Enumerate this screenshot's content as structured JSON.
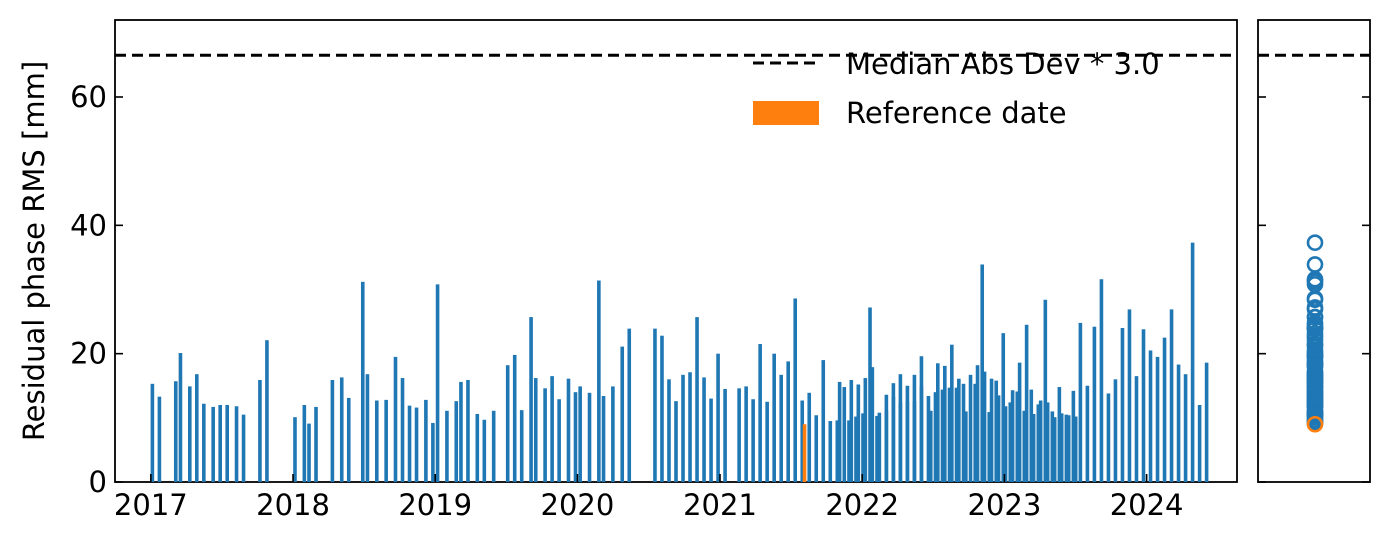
{
  "chart_data": [
    {
      "type": "bar",
      "ylabel": "Residual phase RMS [mm]",
      "xlim": [
        "2016-10-01",
        "2024-08-20"
      ],
      "ylim": [
        0,
        72
      ],
      "x_ticks": [
        "2017",
        "2018",
        "2019",
        "2020",
        "2021",
        "2022",
        "2023",
        "2024"
      ],
      "y_ticks": [
        "0",
        "20",
        "40",
        "60"
      ],
      "grid": false,
      "legend_position": "top-right",
      "threshold": {
        "label": "Median Abs Dev * 3.0",
        "value": 66.5,
        "style": "dashed",
        "color": "#000000"
      },
      "reference": {
        "label": "Reference date",
        "date": "2021-08-06",
        "value": 9.0,
        "color": "#ff7f0e"
      },
      "bar_color": "#1f77b4",
      "series": [
        {
          "values": [
            [
              "2017-01-05",
              15.3
            ],
            [
              "2017-01-23",
              13.3
            ],
            [
              "2017-03-06",
              15.7
            ],
            [
              "2017-03-18",
              20.1
            ],
            [
              "2017-04-11",
              14.9
            ],
            [
              "2017-04-29",
              16.8
            ],
            [
              "2017-05-17",
              12.2
            ],
            [
              "2017-06-10",
              11.7
            ],
            [
              "2017-06-28",
              12.0
            ],
            [
              "2017-07-16",
              12.0
            ],
            [
              "2017-08-09",
              11.8
            ],
            [
              "2017-08-27",
              10.5
            ],
            [
              "2017-10-08",
              15.9
            ],
            [
              "2017-10-26",
              22.1
            ],
            [
              "2018-01-06",
              10.1
            ],
            [
              "2018-01-30",
              12.0
            ],
            [
              "2018-02-11",
              9.1
            ],
            [
              "2018-03-01",
              11.7
            ],
            [
              "2018-04-12",
              15.9
            ],
            [
              "2018-05-06",
              16.3
            ],
            [
              "2018-05-24",
              13.1
            ],
            [
              "2018-06-29",
              31.2
            ],
            [
              "2018-07-11",
              16.8
            ],
            [
              "2018-08-04",
              12.7
            ],
            [
              "2018-08-28",
              12.8
            ],
            [
              "2018-09-21",
              19.5
            ],
            [
              "2018-10-09",
              16.2
            ],
            [
              "2018-10-27",
              11.9
            ],
            [
              "2018-11-14",
              11.6
            ],
            [
              "2018-12-08",
              12.8
            ],
            [
              "2018-12-26",
              9.2
            ],
            [
              "2019-01-07",
              30.8
            ],
            [
              "2019-01-31",
              11.1
            ],
            [
              "2019-02-24",
              12.6
            ],
            [
              "2019-03-08",
              15.6
            ],
            [
              "2019-03-26",
              15.9
            ],
            [
              "2019-04-19",
              10.6
            ],
            [
              "2019-05-07",
              9.7
            ],
            [
              "2019-05-31",
              11.1
            ],
            [
              "2019-07-06",
              18.2
            ],
            [
              "2019-07-24",
              19.8
            ],
            [
              "2019-08-11",
              11.2
            ],
            [
              "2019-09-04",
              25.7
            ],
            [
              "2019-09-16",
              16.2
            ],
            [
              "2019-10-10",
              14.6
            ],
            [
              "2019-10-28",
              16.5
            ],
            [
              "2019-11-15",
              12.9
            ],
            [
              "2019-12-09",
              16.1
            ],
            [
              "2019-12-27",
              14.0
            ],
            [
              "2020-01-08",
              14.9
            ],
            [
              "2020-02-01",
              13.9
            ],
            [
              "2020-02-25",
              31.4
            ],
            [
              "2020-03-08",
              13.4
            ],
            [
              "2020-04-01",
              14.9
            ],
            [
              "2020-04-25",
              21.1
            ],
            [
              "2020-05-13",
              23.9
            ],
            [
              "2020-07-18",
              23.9
            ],
            [
              "2020-08-05",
              22.8
            ],
            [
              "2020-08-23",
              16.0
            ],
            [
              "2020-09-10",
              12.6
            ],
            [
              "2020-09-28",
              16.7
            ],
            [
              "2020-10-16",
              17.1
            ],
            [
              "2020-11-03",
              25.7
            ],
            [
              "2020-11-21",
              16.3
            ],
            [
              "2020-12-09",
              13.0
            ],
            [
              "2020-12-27",
              20.0
            ],
            [
              "2021-01-14",
              14.5
            ],
            [
              "2021-02-19",
              14.6
            ],
            [
              "2021-03-09",
              14.9
            ],
            [
              "2021-03-27",
              12.9
            ],
            [
              "2021-04-14",
              21.5
            ],
            [
              "2021-05-02",
              12.5
            ],
            [
              "2021-05-20",
              20.0
            ],
            [
              "2021-06-07",
              16.7
            ],
            [
              "2021-06-25",
              18.8
            ],
            [
              "2021-07-13",
              28.6
            ],
            [
              "2021-07-31",
              12.7
            ],
            [
              "2021-09-23",
              19.0
            ],
            [
              "2021-11-04",
              15.6
            ],
            [
              "2021-11-16",
              14.8
            ],
            [
              "2021-12-04",
              15.9
            ],
            [
              "2021-12-22",
              15.2
            ],
            [
              "2022-01-09",
              16.2
            ],
            [
              "2022-01-27",
              17.9
            ],
            [
              "2022-02-14",
              10.8
            ],
            [
              "2022-03-04",
              13.6
            ],
            [
              "2022-03-22",
              13.3
            ],
            [
              "2022-04-09",
              16.8
            ],
            [
              "2022-04-27",
              15.0
            ],
            [
              "2022-05-15",
              16.7
            ],
            [
              "2022-06-02",
              19.6
            ],
            [
              "2022-06-20",
              13.4
            ],
            [
              "2022-07-08",
              14.0
            ],
            [
              "2022-07-26",
              14.4
            ],
            [
              "2022-08-13",
              14.7
            ],
            [
              "2022-08-31",
              14.7
            ],
            [
              "2022-09-18",
              15.3
            ],
            [
              "2022-10-06",
              16.7
            ],
            [
              "2022-10-24",
              18.2
            ],
            [
              "2022-11-11",
              17.2
            ],
            [
              "2022-11-29",
              16.1
            ],
            [
              "2022-12-17",
              13.5
            ],
            [
              "2023-01-04",
              11.8
            ],
            [
              "2023-01-22",
              14.3
            ],
            [
              "2023-02-09",
              18.6
            ],
            [
              "2023-02-27",
              24.5
            ],
            [
              "2023-03-17",
              10.6
            ],
            [
              "2023-04-04",
              12.7
            ],
            [
              "2023-04-22",
              12.4
            ],
            [
              "2023-05-10",
              10.1
            ],
            [
              "2023-05-28",
              10.7
            ],
            [
              "2023-06-15",
              10.4
            ],
            [
              "2023-07-03",
              10.2
            ],
            [
              "2021-08-18",
              13.9
            ],
            [
              "2021-09-05",
              10.4
            ],
            [
              "2021-10-11",
              9.5
            ],
            [
              "2021-10-29",
              9.6
            ],
            [
              "2021-11-28",
              9.6
            ],
            [
              "2021-12-16",
              10.2
            ],
            [
              "2022-01-03",
              10.7
            ],
            [
              "2022-01-21",
              27.2
            ],
            [
              "2022-02-08",
              10.3
            ],
            [
              "2022-03-04",
              11.1
            ],
            [
              "2022-03-22",
              15.4
            ],
            [
              "2022-04-09",
              12.4
            ],
            [
              "2022-04-27",
              12.5
            ],
            [
              "2022-05-15",
              12.6
            ],
            [
              "2022-06-02",
              14.9
            ],
            [
              "2022-06-26",
              11.1
            ],
            [
              "2022-07-14",
              18.5
            ],
            [
              "2022-08-01",
              18.1
            ],
            [
              "2022-08-19",
              21.4
            ],
            [
              "2022-09-06",
              16.1
            ],
            [
              "2022-09-24",
              11.0
            ],
            [
              "2022-10-18",
              15.3
            ],
            [
              "2022-11-05",
              33.9
            ],
            [
              "2022-11-23",
              10.9
            ],
            [
              "2022-12-11",
              15.8
            ],
            [
              "2022-12-29",
              23.2
            ],
            [
              "2023-01-16",
              12.4
            ],
            [
              "2023-02-03",
              14.1
            ],
            [
              "2023-02-21",
              11.1
            ],
            [
              "2023-03-11",
              14.4
            ],
            [
              "2023-03-29",
              12.1
            ],
            [
              "2023-04-16",
              28.4
            ],
            [
              "2023-05-04",
              11.0
            ],
            [
              "2023-05-22",
              14.8
            ],
            [
              "2023-06-09",
              10.5
            ],
            [
              "2023-06-27",
              14.2
            ],
            [
              "2023-07-15",
              24.8
            ],
            [
              "2023-08-02",
              15.0
            ],
            [
              "2023-08-20",
              24.2
            ],
            [
              "2023-09-07",
              31.6
            ],
            [
              "2023-09-25",
              13.8
            ],
            [
              "2023-10-13",
              16.0
            ],
            [
              "2023-10-31",
              24.0
            ],
            [
              "2023-11-18",
              26.9
            ],
            [
              "2023-12-06",
              16.5
            ],
            [
              "2023-12-24",
              23.8
            ],
            [
              "2024-01-11",
              20.5
            ],
            [
              "2024-01-29",
              19.5
            ],
            [
              "2024-02-16",
              22.5
            ],
            [
              "2024-03-05",
              26.9
            ],
            [
              "2024-03-23",
              18.3
            ],
            [
              "2024-04-10",
              16.8
            ],
            [
              "2024-04-28",
              37.3
            ],
            [
              "2024-05-16",
              12.0
            ],
            [
              "2024-06-03",
              18.6
            ]
          ]
        }
      ]
    },
    {
      "type": "scatter",
      "ylim": [
        0,
        72
      ],
      "grid": false,
      "threshold_value": 66.5,
      "marker": "open-circle",
      "marker_color": "#1f77b4",
      "reference_marker_color": "#ff7f0e",
      "reference_value": 9.0,
      "values": [
        37.3,
        33.9,
        31.6,
        31.4,
        31.2,
        30.8,
        28.6,
        28.4,
        27.2,
        26.9,
        25.7,
        25.7,
        24.8,
        24.5,
        24.2,
        24.0,
        23.9,
        23.9,
        23.8,
        23.2,
        22.8,
        22.5,
        22.1,
        21.5,
        21.4,
        21.1,
        20.5,
        20.1,
        20.0,
        19.8,
        19.6,
        19.5,
        19.5,
        19.0,
        18.6,
        18.5,
        18.3,
        18.2,
        18.1,
        17.9,
        17.2,
        17.1,
        16.8,
        16.8,
        16.7,
        16.5,
        16.3,
        16.2,
        16.1,
        16.0,
        15.9,
        15.7,
        15.6,
        15.4,
        15.3,
        15.0,
        14.9,
        14.8,
        14.6,
        14.4,
        14.2,
        14.0,
        13.9,
        13.8,
        13.6,
        13.4,
        13.3,
        13.0,
        12.9,
        12.7,
        12.6,
        12.5,
        12.4,
        12.2,
        12.1,
        12.0,
        11.8,
        11.7,
        11.6,
        11.1,
        11.0,
        10.9,
        10.8,
        10.7,
        10.6,
        10.5,
        10.4,
        10.3,
        10.2,
        10.1,
        9.7,
        9.6,
        9.5,
        9.2,
        9.1,
        9.0
      ]
    }
  ]
}
